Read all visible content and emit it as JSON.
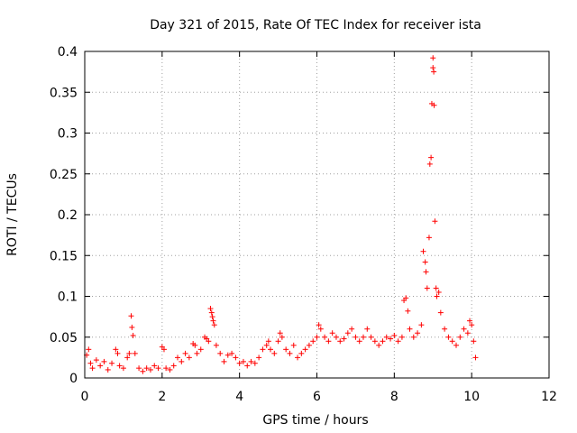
{
  "chart_data": {
    "type": "scatter",
    "title": "Day 321 of 2015, Rate Of TEC Index for receiver ista",
    "xlabel": "GPS time / hours",
    "ylabel": "ROTI / TECUs",
    "xlim": [
      0,
      12
    ],
    "ylim": [
      0,
      0.4
    ],
    "xticks": [
      0,
      2,
      4,
      6,
      8,
      10,
      12
    ],
    "xtick_labels": [
      "0",
      "2",
      "4",
      "6",
      "8",
      "10",
      "12"
    ],
    "yticks": [
      0,
      0.05,
      0.1,
      0.15,
      0.2,
      0.25,
      0.3,
      0.35,
      0.4
    ],
    "ytick_labels": [
      "0",
      "0.05",
      "0.1",
      "0.15",
      "0.2",
      "0.25",
      "0.3",
      "0.35",
      "0.4"
    ],
    "grid": true,
    "marker": "+",
    "marker_color": "#ff0000",
    "series": [
      {
        "name": "ROTI",
        "points": [
          [
            0.05,
            0.028
          ],
          [
            0.1,
            0.035
          ],
          [
            0.15,
            0.018
          ],
          [
            0.2,
            0.012
          ],
          [
            0.3,
            0.022
          ],
          [
            0.4,
            0.015
          ],
          [
            0.5,
            0.02
          ],
          [
            0.6,
            0.01
          ],
          [
            0.7,
            0.018
          ],
          [
            0.8,
            0.035
          ],
          [
            0.85,
            0.03
          ],
          [
            0.9,
            0.015
          ],
          [
            1.0,
            0.012
          ],
          [
            1.1,
            0.025
          ],
          [
            1.15,
            0.03
          ],
          [
            1.2,
            0.076
          ],
          [
            1.22,
            0.062
          ],
          [
            1.25,
            0.052
          ],
          [
            1.3,
            0.03
          ],
          [
            1.4,
            0.012
          ],
          [
            1.5,
            0.008
          ],
          [
            1.6,
            0.012
          ],
          [
            1.7,
            0.01
          ],
          [
            1.8,
            0.015
          ],
          [
            1.9,
            0.012
          ],
          [
            2.0,
            0.038
          ],
          [
            2.05,
            0.035
          ],
          [
            2.1,
            0.012
          ],
          [
            2.2,
            0.01
          ],
          [
            2.3,
            0.015
          ],
          [
            2.4,
            0.025
          ],
          [
            2.5,
            0.02
          ],
          [
            2.6,
            0.03
          ],
          [
            2.7,
            0.025
          ],
          [
            2.8,
            0.042
          ],
          [
            2.85,
            0.04
          ],
          [
            2.9,
            0.03
          ],
          [
            3.0,
            0.035
          ],
          [
            3.1,
            0.05
          ],
          [
            3.15,
            0.048
          ],
          [
            3.2,
            0.045
          ],
          [
            3.25,
            0.085
          ],
          [
            3.28,
            0.08
          ],
          [
            3.3,
            0.075
          ],
          [
            3.32,
            0.07
          ],
          [
            3.35,
            0.065
          ],
          [
            3.4,
            0.04
          ],
          [
            3.5,
            0.03
          ],
          [
            3.6,
            0.02
          ],
          [
            3.7,
            0.028
          ],
          [
            3.8,
            0.03
          ],
          [
            3.9,
            0.025
          ],
          [
            4.0,
            0.018
          ],
          [
            4.1,
            0.02
          ],
          [
            4.2,
            0.015
          ],
          [
            4.3,
            0.02
          ],
          [
            4.4,
            0.018
          ],
          [
            4.5,
            0.025
          ],
          [
            4.6,
            0.035
          ],
          [
            4.7,
            0.04
          ],
          [
            4.75,
            0.045
          ],
          [
            4.8,
            0.035
          ],
          [
            4.9,
            0.03
          ],
          [
            5.0,
            0.045
          ],
          [
            5.05,
            0.055
          ],
          [
            5.1,
            0.05
          ],
          [
            5.2,
            0.035
          ],
          [
            5.3,
            0.03
          ],
          [
            5.4,
            0.04
          ],
          [
            5.5,
            0.025
          ],
          [
            5.6,
            0.03
          ],
          [
            5.7,
            0.035
          ],
          [
            5.8,
            0.04
          ],
          [
            5.9,
            0.045
          ],
          [
            6.0,
            0.05
          ],
          [
            6.05,
            0.065
          ],
          [
            6.1,
            0.06
          ],
          [
            6.2,
            0.05
          ],
          [
            6.3,
            0.045
          ],
          [
            6.4,
            0.055
          ],
          [
            6.5,
            0.05
          ],
          [
            6.6,
            0.045
          ],
          [
            6.7,
            0.048
          ],
          [
            6.8,
            0.055
          ],
          [
            6.9,
            0.06
          ],
          [
            7.0,
            0.05
          ],
          [
            7.1,
            0.045
          ],
          [
            7.2,
            0.05
          ],
          [
            7.3,
            0.06
          ],
          [
            7.4,
            0.05
          ],
          [
            7.5,
            0.045
          ],
          [
            7.6,
            0.04
          ],
          [
            7.7,
            0.045
          ],
          [
            7.8,
            0.05
          ],
          [
            7.9,
            0.048
          ],
          [
            8.0,
            0.052
          ],
          [
            8.1,
            0.045
          ],
          [
            8.2,
            0.05
          ],
          [
            8.25,
            0.095
          ],
          [
            8.3,
            0.098
          ],
          [
            8.35,
            0.082
          ],
          [
            8.4,
            0.06
          ],
          [
            8.5,
            0.05
          ],
          [
            8.6,
            0.055
          ],
          [
            8.7,
            0.065
          ],
          [
            8.75,
            0.155
          ],
          [
            8.8,
            0.142
          ],
          [
            8.82,
            0.13
          ],
          [
            8.85,
            0.11
          ],
          [
            8.9,
            0.172
          ],
          [
            8.92,
            0.262
          ],
          [
            8.95,
            0.27
          ],
          [
            8.97,
            0.336
          ],
          [
            9.0,
            0.392
          ],
          [
            9.0,
            0.38
          ],
          [
            9.02,
            0.375
          ],
          [
            9.03,
            0.334
          ],
          [
            9.05,
            0.192
          ],
          [
            9.08,
            0.11
          ],
          [
            9.1,
            0.1
          ],
          [
            9.15,
            0.105
          ],
          [
            9.2,
            0.08
          ],
          [
            9.3,
            0.06
          ],
          [
            9.4,
            0.05
          ],
          [
            9.5,
            0.045
          ],
          [
            9.6,
            0.04
          ],
          [
            9.7,
            0.05
          ],
          [
            9.8,
            0.06
          ],
          [
            9.9,
            0.055
          ],
          [
            9.95,
            0.07
          ],
          [
            10.0,
            0.065
          ],
          [
            10.05,
            0.045
          ],
          [
            10.1,
            0.025
          ]
        ]
      }
    ]
  }
}
